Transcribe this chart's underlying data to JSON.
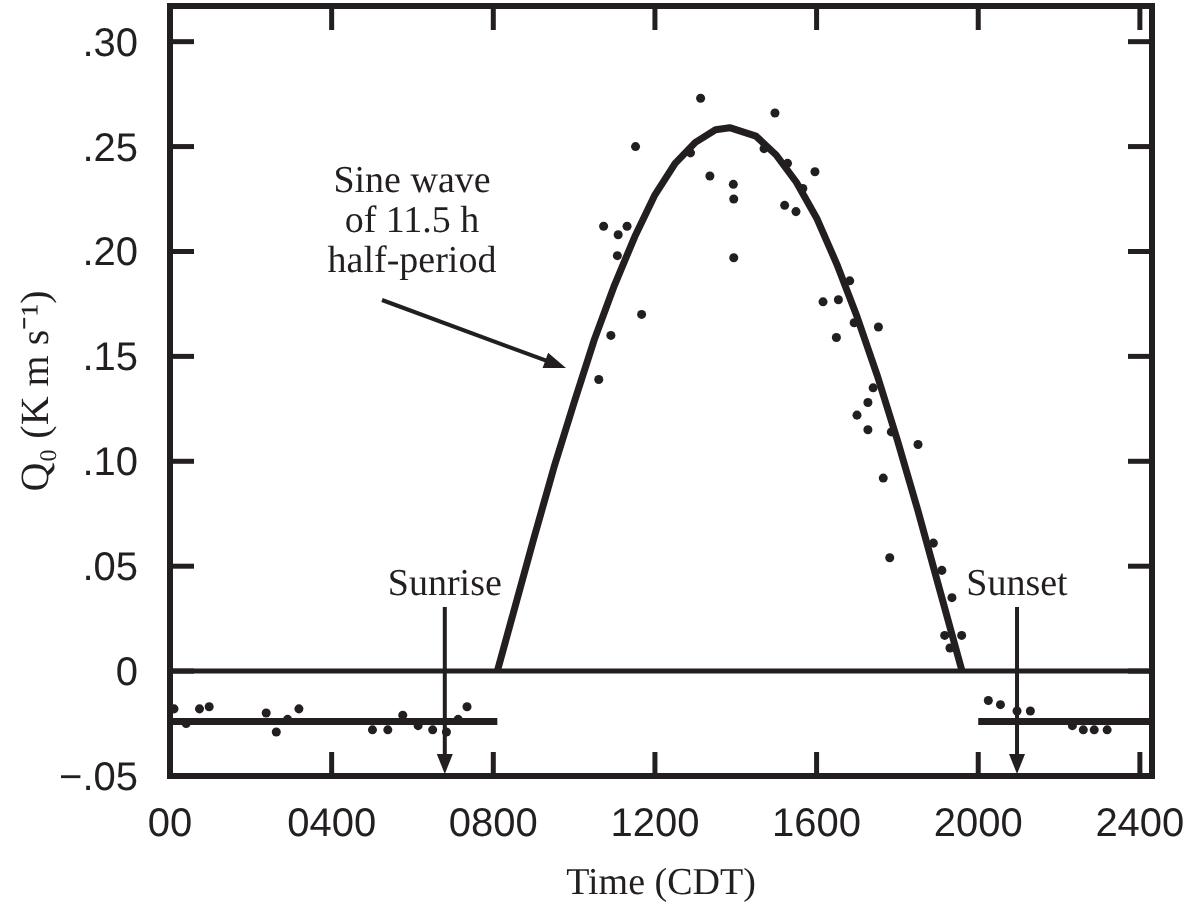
{
  "chart_data": {
    "type": "scatter",
    "xlabel": "Time (CDT)",
    "ylabel": "Q₀ (K m s⁻¹)",
    "xlim": [
      0,
      2430
    ],
    "ylim": [
      -0.05,
      0.317
    ],
    "xticks": [
      {
        "value": 0,
        "label": "00"
      },
      {
        "value": 400,
        "label": "0400"
      },
      {
        "value": 800,
        "label": "0800"
      },
      {
        "value": 1200,
        "label": "1200"
      },
      {
        "value": 1600,
        "label": "1600"
      },
      {
        "value": 2000,
        "label": "2000"
      },
      {
        "value": 2400,
        "label": "2400"
      }
    ],
    "yticks": [
      {
        "value": -0.05,
        "label": "−.05"
      },
      0,
      {
        "value": 0.05,
        "label": ".05"
      },
      {
        "value": 0.1,
        "label": ".10"
      },
      {
        "value": 0.15,
        "label": ".15"
      },
      {
        "value": 0.2,
        "label": ".20"
      },
      {
        "value": 0.25,
        "label": ".25"
      },
      {
        "value": 0.3,
        "label": ".30"
      }
    ],
    "grid": false,
    "marker": "circle",
    "ref_lines": [
      {
        "axis": "y",
        "value": 0,
        "color": "#231f20"
      },
      {
        "axis": "x",
        "value": 680,
        "label": "Sunrise",
        "color": "#231f20"
      },
      {
        "axis": "x",
        "value": 2096,
        "label": "Sunset",
        "color": "#231f20"
      }
    ],
    "annotations": [
      "Sine wave\nof 11.5 h\nhalf-period"
    ],
    "series": [
      {
        "color": "#231f20",
        "x": [
          10,
          40,
          73,
          97,
          238,
          263,
          291,
          319,
          501,
          539,
          576,
          614,
          650,
          684,
          713,
          735,
          1061,
          1073,
          1091,
          1107,
          1109,
          1131,
          1152,
          1167,
          1288,
          1313,
          1336,
          1394,
          1395,
          1395,
          1470,
          1497,
          1521,
          1528,
          1549,
          1566,
          1596,
          1616,
          1649,
          1654,
          1682,
          1693,
          1700,
          1727,
          1727,
          1740,
          1753,
          1765,
          1781,
          1785,
          1851,
          1889,
          1910,
          1917,
          1930,
          1935,
          1959,
          2025,
          2055,
          2096,
          2129,
          2233,
          2260,
          2287,
          2319
        ],
        "values": [
          -0.018,
          -0.025,
          -0.018,
          -0.017,
          -0.02,
          -0.029,
          -0.023,
          -0.018,
          -0.028,
          -0.028,
          -0.021,
          -0.026,
          -0.028,
          -0.029,
          -0.023,
          -0.017,
          0.139,
          0.212,
          0.16,
          0.198,
          0.208,
          0.212,
          0.25,
          0.17,
          0.247,
          0.273,
          0.236,
          0.232,
          0.225,
          0.197,
          0.249,
          0.266,
          0.222,
          0.242,
          0.219,
          0.23,
          0.238,
          0.176,
          0.159,
          0.177,
          0.186,
          0.166,
          0.122,
          0.128,
          0.115,
          0.135,
          0.164,
          0.092,
          0.054,
          0.114,
          0.108,
          0.061,
          0.048,
          0.017,
          0.011,
          0.035,
          0.017,
          -0.014,
          -0.016,
          -0.019,
          -0.019,
          -0.026,
          -0.028,
          -0.028,
          -0.028
        ]
      },
      {
        "type": "line",
        "marker": "none",
        "color": "#231f20",
        "x": [
          810,
          850,
          900,
          950,
          1000,
          1050,
          1100,
          1150,
          1200,
          1250,
          1300,
          1350,
          1385,
          1450,
          1500,
          1550,
          1600,
          1650,
          1700,
          1750,
          1800,
          1850,
          1900,
          1960
        ],
        "values": [
          0,
          0.028,
          0.063,
          0.097,
          0.128,
          0.158,
          0.184,
          0.207,
          0.227,
          0.242,
          0.252,
          0.258,
          0.259,
          0.255,
          0.246,
          0.233,
          0.216,
          0.194,
          0.169,
          0.141,
          0.11,
          0.077,
          0.042,
          0
        ]
      },
      {
        "type": "line",
        "marker": "none",
        "color": "#231f20",
        "x": [
          0,
          810
        ],
        "values": [
          -0.024,
          -0.024
        ]
      },
      {
        "type": "line",
        "marker": "none",
        "color": "#231f20",
        "x": [
          2000,
          2430
        ],
        "values": [
          -0.024,
          -0.024
        ]
      }
    ]
  }
}
